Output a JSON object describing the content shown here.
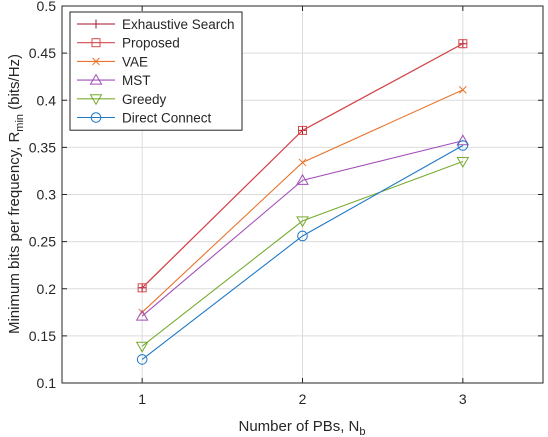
{
  "chart_data": {
    "type": "line",
    "title": "",
    "xlabel": "Number of PBs, N",
    "xlabel_sub": "b",
    "ylabel": "Minimum bits per frequency, R",
    "ylabel_sub": "min",
    "ylabel_unit": " (bits/Hz)",
    "x": [
      1,
      2,
      3
    ],
    "xlim": [
      0.5,
      3.5
    ],
    "ylim": [
      0.1,
      0.5
    ],
    "xticks": [
      1,
      2,
      3
    ],
    "xtick_labels": [
      "1",
      "2",
      "3"
    ],
    "yticks": [
      0.1,
      0.15,
      0.2,
      0.25,
      0.3,
      0.35,
      0.4,
      0.45,
      0.5
    ],
    "ytick_labels": [
      "0.1",
      "0.15",
      "0.2",
      "0.25",
      "0.3",
      "0.35",
      "0.4",
      "0.45",
      "0.5"
    ],
    "grid": true,
    "legend_position": "top-left",
    "series": [
      {
        "name": "Exhaustive Search",
        "values": [
          0.201,
          0.368,
          0.46
        ],
        "color": "#a2142f",
        "marker": "plus"
      },
      {
        "name": "Proposed",
        "values": [
          0.201,
          0.368,
          0.46
        ],
        "color": "#d84a4a",
        "marker": "square"
      },
      {
        "name": "VAE",
        "values": [
          0.175,
          0.334,
          0.411
        ],
        "color": "#e8742e",
        "marker": "x"
      },
      {
        "name": "MST",
        "values": [
          0.171,
          0.315,
          0.357
        ],
        "color": "#a24fb8",
        "marker": "triangle-up"
      },
      {
        "name": "Greedy",
        "values": [
          0.139,
          0.272,
          0.335
        ],
        "color": "#77ac30",
        "marker": "triangle-down"
      },
      {
        "name": "Direct Connect",
        "values": [
          0.125,
          0.256,
          0.352
        ],
        "color": "#1f78c8",
        "marker": "circle"
      }
    ]
  }
}
